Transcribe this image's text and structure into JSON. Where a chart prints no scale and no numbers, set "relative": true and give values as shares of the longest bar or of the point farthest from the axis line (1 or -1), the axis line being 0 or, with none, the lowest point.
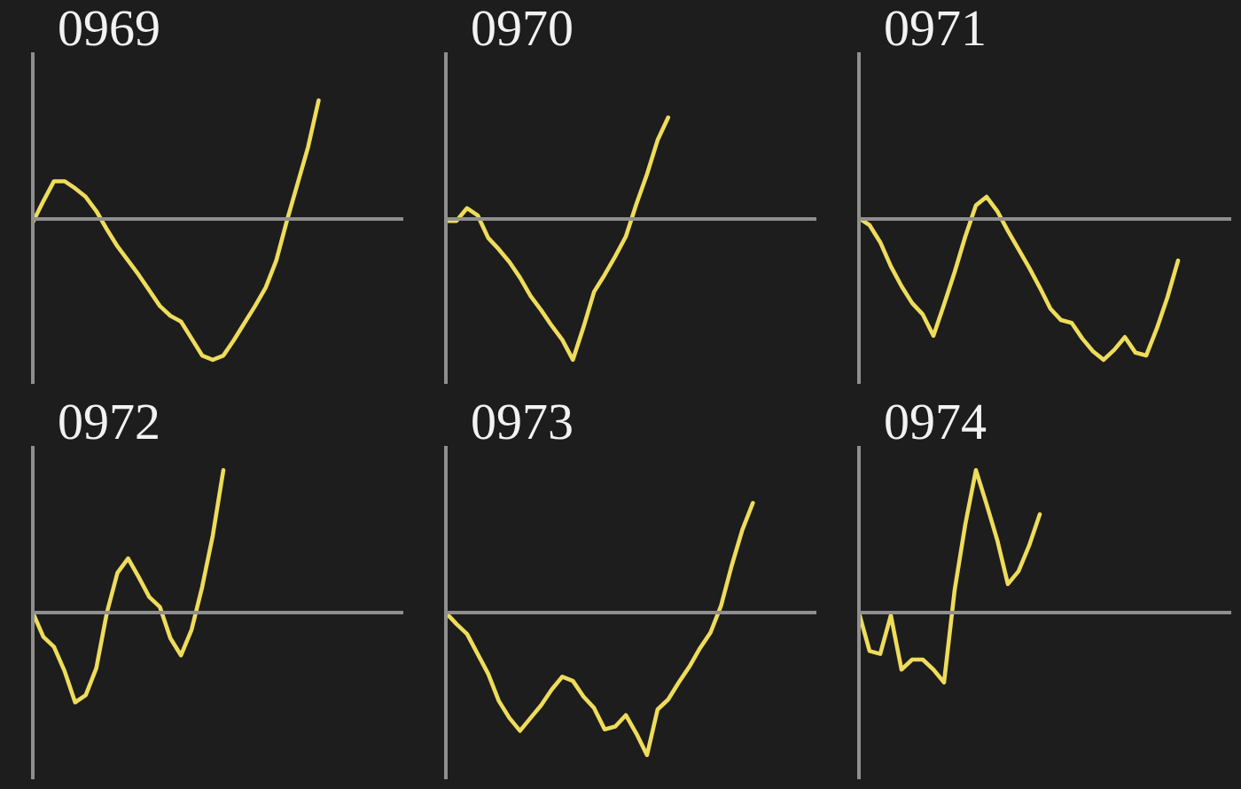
{
  "chart_data": [
    {
      "type": "line",
      "title": "0969",
      "relative": true,
      "categories": [
        null,
        null,
        null,
        null,
        null,
        null,
        null,
        null,
        null,
        null,
        null,
        null,
        null,
        null,
        null,
        null,
        null,
        null,
        null,
        null,
        null,
        null,
        null,
        null,
        null,
        null,
        null,
        null,
        null,
        null,
        null,
        null,
        null,
        null,
        null,
        null
      ],
      "series": [
        {
          "color": "#eedc5b",
          "values": [
            -0.03,
            0.12,
            0.26,
            0.26,
            0.21,
            0.15,
            0.05,
            -0.08,
            -0.2,
            -0.3,
            -0.4,
            -0.51,
            -0.62,
            -0.69,
            -0.73,
            -0.85,
            -0.97,
            -1,
            -0.97,
            -0.86,
            -0.74,
            -0.62,
            -0.49,
            -0.3,
            -0.02,
            0.24,
            0.5,
            0.83,
            null,
            null,
            null,
            null,
            null,
            null,
            null,
            null
          ]
        }
      ]
    },
    {
      "type": "line",
      "title": "0970",
      "relative": true,
      "categories": [
        null,
        null,
        null,
        null,
        null,
        null,
        null,
        null,
        null,
        null,
        null,
        null,
        null,
        null,
        null,
        null,
        null,
        null,
        null,
        null,
        null,
        null,
        null,
        null,
        null,
        null,
        null,
        null,
        null,
        null,
        null,
        null,
        null,
        null,
        null,
        null
      ],
      "series": [
        {
          "color": "#eedc5b",
          "values": [
            -0.02,
            -0.02,
            0.07,
            0.02,
            -0.14,
            -0.22,
            -0.31,
            -0.42,
            -0.55,
            -0.65,
            -0.76,
            -0.86,
            -1,
            -0.77,
            -0.52,
            -0.4,
            -0.27,
            -0.13,
            0.1,
            0.31,
            0.55,
            0.71,
            null,
            null,
            null,
            null,
            null,
            null,
            null,
            null,
            null,
            null,
            null,
            null,
            null,
            null
          ]
        }
      ]
    },
    {
      "type": "line",
      "title": "0971",
      "relative": true,
      "categories": [
        null,
        null,
        null,
        null,
        null,
        null,
        null,
        null,
        null,
        null,
        null,
        null,
        null,
        null,
        null,
        null,
        null,
        null,
        null,
        null,
        null,
        null,
        null,
        null,
        null,
        null,
        null,
        null,
        null,
        null,
        null,
        null,
        null,
        null,
        null,
        null
      ],
      "series": [
        {
          "color": "#eedc5b",
          "values": [
            0,
            -0.05,
            -0.17,
            -0.34,
            -0.48,
            -0.6,
            -0.68,
            -0.83,
            -0.61,
            -0.38,
            -0.13,
            0.09,
            0.15,
            0.05,
            -0.09,
            -0.22,
            -0.35,
            -0.49,
            -0.64,
            -0.72,
            -0.74,
            -0.85,
            -0.94,
            -1,
            -0.93,
            -0.84,
            -0.95,
            -0.97,
            -0.78,
            -0.56,
            -0.3,
            null,
            null,
            null,
            null,
            null
          ]
        }
      ]
    },
    {
      "type": "line",
      "title": "0972",
      "relative": true,
      "categories": [
        null,
        null,
        null,
        null,
        null,
        null,
        null,
        null,
        null,
        null,
        null,
        null,
        null,
        null,
        null,
        null,
        null,
        null,
        null,
        null,
        null,
        null,
        null,
        null,
        null,
        null,
        null,
        null,
        null,
        null,
        null,
        null,
        null,
        null,
        null,
        null
      ],
      "series": [
        {
          "color": "#eedc5b",
          "values": [
            0,
            -0.17,
            -0.24,
            -0.41,
            -0.63,
            -0.58,
            -0.39,
            0,
            0.28,
            0.38,
            0.25,
            0.11,
            0.04,
            -0.18,
            -0.3,
            -0.12,
            0.18,
            0.54,
            1,
            null,
            null,
            null,
            null,
            null,
            null,
            null,
            null,
            null,
            null,
            null,
            null,
            null,
            null,
            null,
            null,
            null
          ]
        }
      ]
    },
    {
      "type": "line",
      "title": "0973",
      "relative": true,
      "categories": [
        null,
        null,
        null,
        null,
        null,
        null,
        null,
        null,
        null,
        null,
        null,
        null,
        null,
        null,
        null,
        null,
        null,
        null,
        null,
        null,
        null,
        null,
        null,
        null,
        null,
        null,
        null,
        null,
        null,
        null,
        null,
        null,
        null,
        null,
        null,
        null
      ],
      "series": [
        {
          "color": "#eedc5b",
          "values": [
            0,
            -0.08,
            -0.15,
            -0.29,
            -0.43,
            -0.62,
            -0.74,
            -0.83,
            -0.74,
            -0.65,
            -0.54,
            -0.45,
            -0.48,
            -0.59,
            -0.67,
            -0.82,
            -0.8,
            -0.72,
            -0.85,
            -1,
            -0.68,
            -0.61,
            -0.49,
            -0.38,
            -0.25,
            -0.14,
            0.05,
            0.33,
            0.58,
            0.77,
            null,
            null,
            null,
            null,
            null,
            null
          ]
        }
      ]
    },
    {
      "type": "line",
      "title": "0974",
      "relative": true,
      "categories": [
        null,
        null,
        null,
        null,
        null,
        null,
        null,
        null,
        null,
        null,
        null,
        null,
        null,
        null,
        null,
        null,
        null,
        null,
        null,
        null,
        null,
        null,
        null,
        null,
        null,
        null,
        null,
        null,
        null,
        null,
        null,
        null,
        null,
        null,
        null,
        null
      ],
      "series": [
        {
          "color": "#eedc5b",
          "values": [
            0,
            -0.27,
            -0.29,
            -0.02,
            -0.4,
            -0.33,
            -0.33,
            -0.4,
            -0.49,
            0.16,
            0.62,
            1,
            0.76,
            0.51,
            0.2,
            0.29,
            0.47,
            0.69,
            null,
            null,
            null,
            null,
            null,
            null,
            null,
            null,
            null,
            null,
            null,
            null,
            null,
            null,
            null,
            null,
            null,
            null
          ]
        }
      ]
    }
  ]
}
